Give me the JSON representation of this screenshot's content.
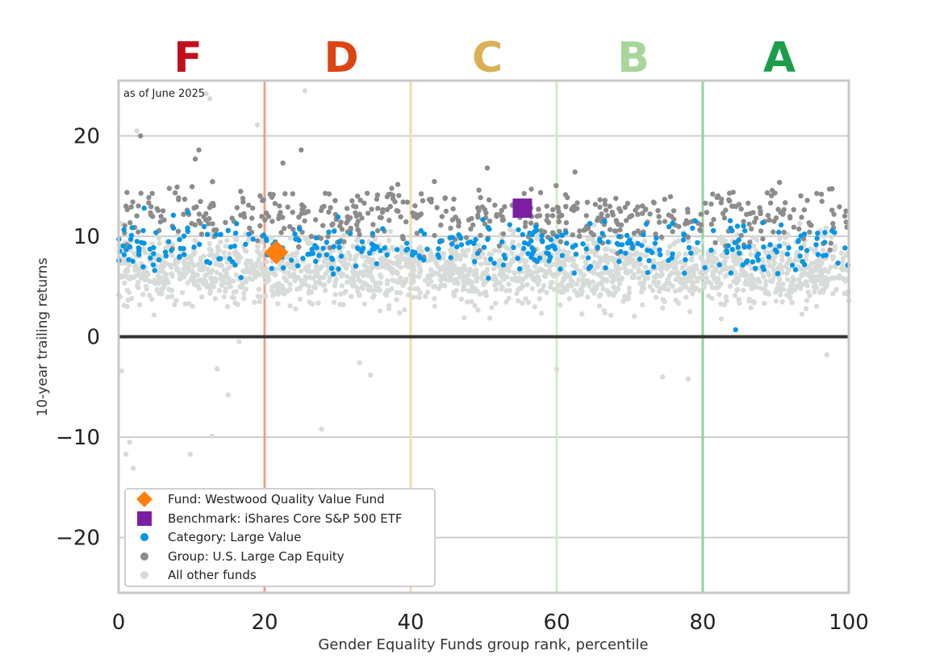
{
  "chart_data": {
    "type": "scatter",
    "title": "",
    "annotation": "as of June 2025",
    "xlabel": "Gender Equality Funds group rank, percentile",
    "ylabel": "10-year trailing returns",
    "xlim": [
      0,
      100
    ],
    "ylim": [
      -25.5,
      25.5
    ],
    "x_ticks": [
      "0",
      "20",
      "40",
      "60",
      "80",
      "100"
    ],
    "x_tick_values": [
      0,
      20,
      40,
      60,
      80,
      100
    ],
    "y_ticks": [
      "20",
      "10",
      "0",
      "−10",
      "−20"
    ],
    "y_tick_values": [
      20,
      10,
      0,
      -10,
      -20
    ],
    "grid": "horizontal",
    "legend_position": "bottom-left",
    "grades": [
      {
        "letter": "F",
        "x_center": 9.5,
        "color": "#c0101e"
      },
      {
        "letter": "D",
        "x_center": 30.5,
        "color": "#dd4411"
      },
      {
        "letter": "C",
        "x_center": 50.5,
        "color": "#d9b154"
      },
      {
        "letter": "B",
        "x_center": 70.5,
        "color": "#a8d69a"
      },
      {
        "letter": "A",
        "x_center": 90.5,
        "color": "#1a9e4a"
      }
    ],
    "grade_boundaries": [
      {
        "x": 20,
        "color": "#f0a08a"
      },
      {
        "x": 40,
        "color": "#f0dcb0"
      },
      {
        "x": 60,
        "color": "#d4ecc8"
      },
      {
        "x": 80,
        "color": "#8ed4a4"
      },
      {
        "x": 100,
        "color": "#8ed4a4"
      }
    ],
    "series": [
      {
        "name": "Fund: Westwood Quality Value Fund",
        "marker": "diamond",
        "color": "#ff7f0e",
        "points": [
          [
            21.6,
            8.4
          ]
        ]
      },
      {
        "name": "Benchmark: iShares Core S&P 500 ETF",
        "marker": "square",
        "color": "#7b1fa2",
        "points": [
          [
            55.3,
            12.8
          ]
        ]
      },
      {
        "name": "Category: Large Value",
        "marker": "circle",
        "color": "#0496e6",
        "cloud": {
          "count": 340,
          "x_range": [
            0,
            100
          ],
          "y_center": 8.8,
          "y_spread": 1.7
        },
        "points": [
          [
            3.5,
            12.8
          ],
          [
            9.5,
            12.4
          ],
          [
            7.5,
            12.1
          ],
          [
            84.5,
            0.7
          ],
          [
            24.7,
            9.6
          ],
          [
            33.5,
            8.8
          ]
        ]
      },
      {
        "name": "Group: U.S. Large Cap Equity",
        "marker": "circle",
        "color": "#8c8c8c",
        "cloud": {
          "count": 520,
          "x_range": [
            0,
            100
          ],
          "y_center": 12.0,
          "y_spread": 2.0
        },
        "points": [
          [
            3.0,
            20.0
          ],
          [
            10.5,
            17.7
          ],
          [
            11.0,
            18.6
          ],
          [
            22.5,
            17.3
          ],
          [
            25.0,
            18.6
          ],
          [
            50.5,
            16.8
          ],
          [
            62.5,
            16.4
          ],
          [
            84.0,
            13.0
          ]
        ]
      },
      {
        "name": "All other funds",
        "marker": "circle",
        "color": "#d8dcd8",
        "cloud": {
          "count": 2000,
          "x_range": [
            0,
            100
          ],
          "y_center": 6.6,
          "y_spread": 2.3
        },
        "points": [
          [
            12.0,
            24.2
          ],
          [
            12.5,
            23.7
          ],
          [
            25.5,
            24.5
          ],
          [
            19.0,
            21.1
          ],
          [
            2.5,
            20.5
          ],
          [
            0.4,
            -3.4
          ],
          [
            1.0,
            -11.7
          ],
          [
            1.5,
            -10.5
          ],
          [
            2.0,
            -13.1
          ],
          [
            9.8,
            -11.7
          ],
          [
            12.8,
            -9.9
          ],
          [
            13.5,
            -3.2
          ],
          [
            15.0,
            -5.8
          ],
          [
            16.5,
            -0.5
          ],
          [
            27.8,
            -9.2
          ],
          [
            33.0,
            -2.6
          ],
          [
            34.5,
            -3.8
          ],
          [
            60.0,
            -3.2
          ],
          [
            74.5,
            -4.0
          ],
          [
            78.0,
            -4.2
          ],
          [
            97.0,
            -1.8
          ],
          [
            92.0,
            5.0
          ]
        ]
      }
    ]
  }
}
